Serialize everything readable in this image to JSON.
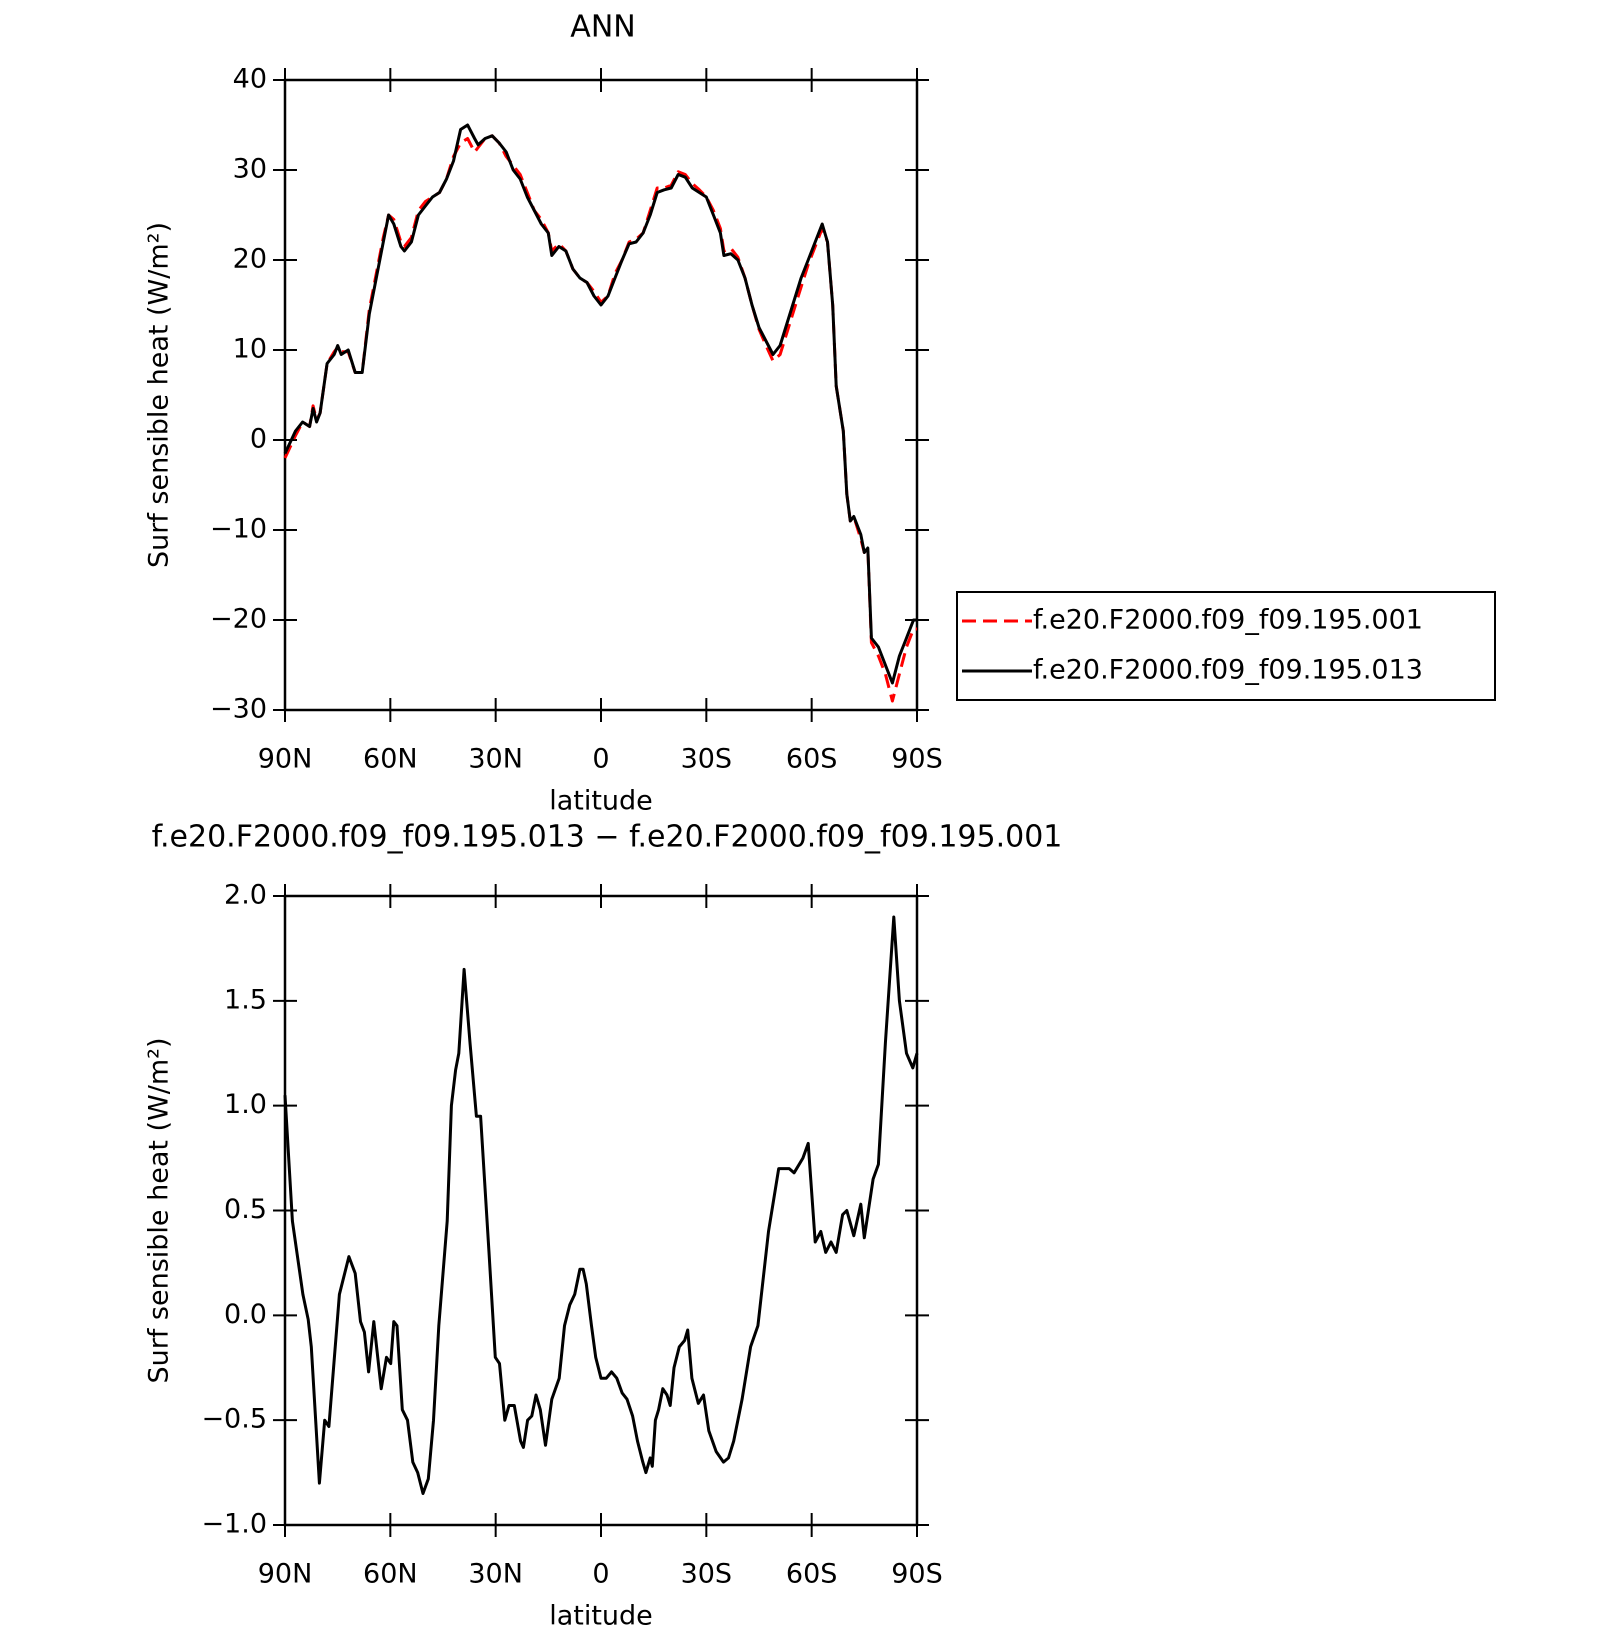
{
  "chart_data": [
    {
      "type": "line",
      "title": "ANN",
      "xlabel": "latitude",
      "ylabel": "Surf sensible heat (W/m²)",
      "xlim": [
        90,
        -90
      ],
      "xticks": [
        {
          "value": 90,
          "label": "90N"
        },
        {
          "value": 60,
          "label": "60N"
        },
        {
          "value": 30,
          "label": "30N"
        },
        0,
        {
          "value": -30,
          "label": "30S"
        },
        {
          "value": -60,
          "label": "60S"
        },
        {
          "value": -90,
          "label": "90S"
        }
      ],
      "ylim": [
        -30,
        40
      ],
      "yticks": [
        {
          "value": -30,
          "label": "−30"
        },
        {
          "value": -20,
          "label": "−20"
        },
        {
          "value": -10,
          "label": "−10"
        },
        0,
        10,
        20,
        30,
        40
      ],
      "legend": "right",
      "x": [
        90,
        87,
        85,
        83,
        82,
        81,
        80,
        78,
        76,
        75,
        74,
        72,
        70,
        68,
        66,
        64,
        62,
        60.5,
        59,
        57,
        56,
        54,
        52,
        50,
        48,
        46,
        44,
        42,
        40,
        38,
        36,
        35,
        33,
        31,
        29,
        27,
        25,
        23,
        21,
        19,
        17,
        15,
        14,
        12,
        10,
        8,
        6,
        4,
        2,
        0,
        -2,
        -4,
        -6,
        -8,
        -10,
        -12,
        -14,
        -16,
        -18,
        -20,
        -22,
        -24,
        -26,
        -28,
        -30,
        -32,
        -34,
        -35,
        -37,
        -39,
        -41,
        -43,
        -45,
        -47,
        -49,
        -51,
        -53,
        -55,
        -57,
        -59,
        -61,
        -63,
        -64.5,
        -66,
        -67,
        -69,
        -70,
        -71,
        -72,
        -74,
        -75,
        -76,
        -77,
        -79,
        -81,
        -83,
        -85,
        -87,
        -89,
        -90
      ],
      "series": [
        {
          "name": "f.e20.F2000.f09_f09.195.001",
          "color": "#ff0000",
          "linestyle": "dashed",
          "values": [
            -2,
            0.5,
            2,
            1.5,
            3.8,
            2.2,
            3,
            8.5,
            9.8,
            10.3,
            9.8,
            9.8,
            7.5,
            7.5,
            14.5,
            18.5,
            22.5,
            25,
            24.5,
            22,
            21.5,
            22.5,
            25.5,
            26.5,
            27,
            27.5,
            29,
            31.5,
            33,
            33.5,
            32,
            32.5,
            33.5,
            33.8,
            33,
            31.5,
            30.5,
            29.5,
            27.5,
            25.5,
            24.5,
            23,
            21,
            21.8,
            21,
            19,
            18,
            17.5,
            16.5,
            15.3,
            16,
            18.5,
            20,
            22,
            22.3,
            23,
            25.5,
            28,
            28,
            28.3,
            29.8,
            29.5,
            28.5,
            27.8,
            27,
            25.5,
            23.5,
            21,
            21.3,
            20.3,
            18,
            15,
            12.3,
            10.5,
            8.8,
            9.5,
            12,
            14.5,
            17,
            19.5,
            21.5,
            23.5,
            22,
            15,
            6,
            1,
            -6,
            -9,
            -8.5,
            -11,
            -12.5,
            -12,
            -22.5,
            -24,
            -26,
            -29,
            -26,
            -23,
            -21,
            -21
          ]
        },
        {
          "name": "f.e20.F2000.f09_f09.195.013",
          "color": "#000000",
          "linestyle": "solid",
          "values": [
            -1.5,
            1,
            2,
            1.5,
            3.5,
            2,
            3,
            8.5,
            9.5,
            10.5,
            9.5,
            10,
            7.5,
            7.5,
            14,
            18,
            22,
            25,
            24,
            21.5,
            21,
            22,
            25,
            26,
            27,
            27.5,
            29,
            31,
            34.5,
            35,
            33.5,
            32.8,
            33.5,
            33.8,
            33,
            32,
            30,
            29,
            27,
            25.5,
            24,
            23,
            20.5,
            21.5,
            21,
            19,
            18,
            17.5,
            16,
            15,
            16,
            18,
            20,
            21.8,
            22,
            23,
            25,
            27.5,
            27.8,
            28,
            29.5,
            29.2,
            28,
            27.5,
            27,
            25,
            23,
            20.5,
            20.7,
            20,
            18,
            15,
            12.5,
            11,
            9.5,
            10.5,
            13,
            15.5,
            18,
            20,
            22,
            24,
            22,
            15,
            6,
            1,
            -6,
            -9,
            -8.5,
            -10.5,
            -12.5,
            -12,
            -22,
            -23,
            -25,
            -27,
            -24,
            -22,
            -20,
            -20
          ]
        }
      ]
    },
    {
      "type": "line",
      "title": "f.e20.F2000.f09_f09.195.013 − f.e20.F2000.f09_f09.195.001",
      "xlabel": "latitude",
      "ylabel": "Surf sensible heat (W/m²)",
      "xlim": [
        90,
        -90
      ],
      "xticks": [
        {
          "value": 90,
          "label": "90N"
        },
        {
          "value": 60,
          "label": "60N"
        },
        {
          "value": 30,
          "label": "30N"
        },
        0,
        {
          "value": -30,
          "label": "30S"
        },
        {
          "value": -60,
          "label": "60S"
        },
        {
          "value": -90,
          "label": "90S"
        }
      ],
      "ylim": [
        -1,
        2
      ],
      "yticks": [
        {
          "value": -1,
          "label": "−1.0"
        },
        {
          "value": -0.5,
          "label": "−0.5"
        },
        {
          "value": 0,
          "label": "0.0"
        },
        0.5,
        {
          "value": 1,
          "label": "1.0"
        },
        1.5,
        {
          "value": 2,
          "label": "2.0"
        }
      ],
      "color": "#000000",
      "x": [
        90,
        87.9,
        84.9,
        83.4,
        82.5,
        80.2,
        78.7,
        77.5,
        74.5,
        71.8,
        70,
        68.5,
        67.4,
        66.2,
        64.7,
        62.6,
        61.1,
        59.9,
        59,
        58.1,
        56.6,
        55.1,
        53.6,
        52.2,
        50.7,
        49.2,
        47.7,
        46.2,
        43.8,
        42.6,
        41.4,
        40.5,
        39,
        37.3,
        35.5,
        34.3,
        31.9,
        30.1,
        28.9,
        27.4,
        26.2,
        24.7,
        22.9,
        22.1,
        20.9,
        19.7,
        18.5,
        17.3,
        15.8,
        14,
        11.9,
        10.4,
        8.9,
        7.5,
        6,
        5.1,
        4.2,
        2.7,
        1.5,
        0,
        -1.5,
        -3,
        -4.5,
        -6,
        -7.4,
        -9,
        -10.4,
        -11.9,
        -12.8,
        -14,
        -14.6,
        -15.5,
        -16.4,
        -17.6,
        -18.8,
        -19.7,
        -20.8,
        -22.3,
        -23.8,
        -24.7,
        -25.9,
        -27.7,
        -29.2,
        -30.7,
        -32.8,
        -34.9,
        -36.3,
        -37.8,
        -40.2,
        -42.6,
        -44.7,
        -47.7,
        -50.6,
        -53.6,
        -55,
        -57.5,
        -59,
        -61,
        -62.6,
        -64,
        -65.5,
        -67,
        -68.8,
        -70,
        -72,
        -74,
        -75,
        -77.5,
        -79,
        -81,
        -83.4,
        -85,
        -87,
        -88.8,
        -90
      ],
      "values": [
        1.05,
        0.45,
        0.1,
        -0.02,
        -0.15,
        -0.8,
        -0.5,
        -0.53,
        0.1,
        0.28,
        0.2,
        -0.03,
        -0.08,
        -0.27,
        -0.03,
        -0.35,
        -0.2,
        -0.23,
        -0.03,
        -0.05,
        -0.45,
        -0.5,
        -0.7,
        -0.75,
        -0.85,
        -0.78,
        -0.5,
        -0.05,
        0.45,
        1,
        1.17,
        1.25,
        1.65,
        1.3,
        0.95,
        0.95,
        0.3,
        -0.2,
        -0.23,
        -0.5,
        -0.43,
        -0.43,
        -0.6,
        -0.63,
        -0.5,
        -0.48,
        -0.38,
        -0.45,
        -0.62,
        -0.4,
        -0.3,
        -0.05,
        0.05,
        0.1,
        0.22,
        0.22,
        0.15,
        -0.05,
        -0.2,
        -0.3,
        -0.3,
        -0.27,
        -0.3,
        -0.37,
        -0.4,
        -0.48,
        -0.6,
        -0.7,
        -0.75,
        -0.68,
        -0.72,
        -0.5,
        -0.45,
        -0.35,
        -0.38,
        -0.43,
        -0.25,
        -0.15,
        -0.12,
        -0.07,
        -0.3,
        -0.42,
        -0.38,
        -0.55,
        -0.65,
        -0.7,
        -0.68,
        -0.6,
        -0.4,
        -0.15,
        -0.05,
        0.4,
        0.7,
        0.7,
        0.68,
        0.75,
        0.82,
        0.35,
        0.4,
        0.3,
        0.35,
        0.3,
        0.48,
        0.5,
        0.38,
        0.53,
        0.37,
        0.65,
        0.72,
        1.3,
        1.9,
        1.5,
        1.25,
        1.18,
        1.25
      ]
    }
  ]
}
